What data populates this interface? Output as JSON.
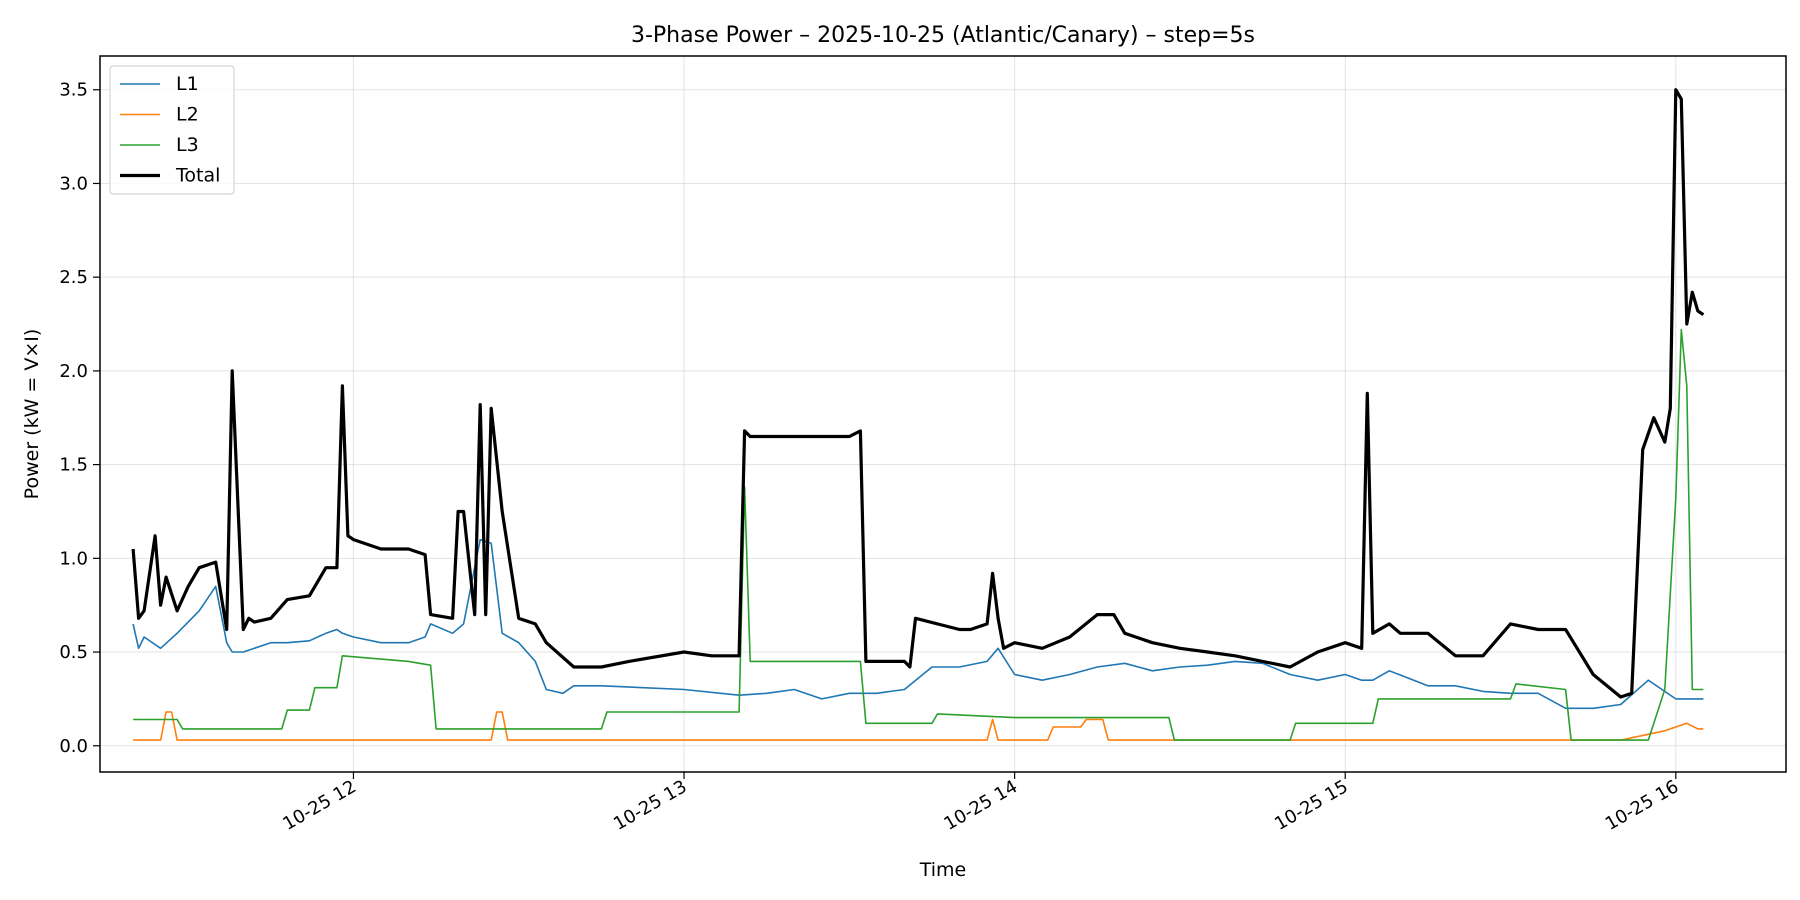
{
  "chart_data": {
    "type": "line",
    "title": "3-Phase Power – 2025-10-25 (Atlantic/Canary) – step=5s",
    "xlabel": "Time",
    "ylabel": "Power (kW = V×I)",
    "xlim": [
      "2025-10-25 11:14",
      "2025-10-25 16:20"
    ],
    "ylim": [
      -0.14,
      3.68
    ],
    "x_ticks": [
      {
        "x": "2025-10-25 12:00",
        "label": "10-25 12"
      },
      {
        "x": "2025-10-25 13:00",
        "label": "10-25 13"
      },
      {
        "x": "2025-10-25 14:00",
        "label": "10-25 14"
      },
      {
        "x": "2025-10-25 15:00",
        "label": "10-25 15"
      },
      {
        "x": "2025-10-25 16:00",
        "label": "10-25 16"
      }
    ],
    "y_ticks": [
      "0.0",
      "0.5",
      "1.0",
      "1.5",
      "2.0",
      "2.5",
      "3.0",
      "3.5"
    ],
    "grid": true,
    "legend_position": "top-left",
    "series": [
      {
        "name": "L1",
        "color": "#1f77b4",
        "x": [
          "11:20",
          "11:21",
          "11:22",
          "11:25",
          "11:28",
          "11:32",
          "11:35",
          "11:37",
          "11:38",
          "11:40",
          "11:45",
          "11:48",
          "11:52",
          "11:55",
          "11:57",
          "11:58",
          "12:00",
          "12:05",
          "12:10",
          "12:13",
          "12:14",
          "12:18",
          "12:20",
          "12:23",
          "12:25",
          "12:27",
          "12:30",
          "12:33",
          "12:35",
          "12:38",
          "12:40",
          "12:45",
          "13:00",
          "13:10",
          "13:15",
          "13:20",
          "13:25",
          "13:30",
          "13:35",
          "13:40",
          "13:45",
          "13:50",
          "13:55",
          "13:57",
          "14:00",
          "14:05",
          "14:10",
          "14:15",
          "14:20",
          "14:25",
          "14:30",
          "14:35",
          "14:40",
          "14:45",
          "14:50",
          "14:55",
          "15:00",
          "15:03",
          "15:05",
          "15:08",
          "15:15",
          "15:20",
          "15:25",
          "15:30",
          "15:35",
          "15:40",
          "15:45",
          "15:50",
          "15:55",
          "16:00",
          "16:03",
          "16:05"
        ],
        "y": [
          0.65,
          0.52,
          0.58,
          0.52,
          0.6,
          0.72,
          0.85,
          0.55,
          0.5,
          0.5,
          0.55,
          0.55,
          0.56,
          0.6,
          0.62,
          0.6,
          0.58,
          0.55,
          0.55,
          0.58,
          0.65,
          0.6,
          0.65,
          1.1,
          1.08,
          0.6,
          0.55,
          0.45,
          0.3,
          0.28,
          0.32,
          0.32,
          0.3,
          0.27,
          0.28,
          0.3,
          0.25,
          0.28,
          0.28,
          0.3,
          0.42,
          0.42,
          0.45,
          0.52,
          0.38,
          0.35,
          0.38,
          0.42,
          0.44,
          0.4,
          0.42,
          0.43,
          0.45,
          0.44,
          0.38,
          0.35,
          0.38,
          0.35,
          0.35,
          0.4,
          0.32,
          0.32,
          0.29,
          0.28,
          0.28,
          0.2,
          0.2,
          0.22,
          0.35,
          0.25,
          0.25,
          0.25
        ]
      },
      {
        "name": "L2",
        "color": "#ff7f0e",
        "x": [
          "11:20",
          "11:25",
          "11:26",
          "11:27",
          "11:28",
          "12:25",
          "12:26",
          "12:27",
          "12:28",
          "13:55",
          "13:56",
          "13:57",
          "14:06",
          "14:07",
          "14:12",
          "14:13",
          "14:15",
          "14:16",
          "14:17",
          "15:50",
          "15:58",
          "16:00",
          "16:02",
          "16:04",
          "16:05"
        ],
        "y": [
          0.03,
          0.03,
          0.18,
          0.18,
          0.03,
          0.03,
          0.18,
          0.18,
          0.03,
          0.03,
          0.14,
          0.03,
          0.03,
          0.1,
          0.1,
          0.14,
          0.14,
          0.14,
          0.03,
          0.03,
          0.08,
          0.1,
          0.12,
          0.09,
          0.09
        ]
      },
      {
        "name": "L3",
        "color": "#2ca02c",
        "x": [
          "11:20",
          "11:28",
          "11:29",
          "11:47",
          "11:48",
          "11:52",
          "11:53",
          "11:57",
          "11:58",
          "12:10",
          "12:14",
          "12:15",
          "12:45",
          "12:46",
          "13:00",
          "13:10",
          "13:11",
          "13:12",
          "13:15",
          "13:20",
          "13:25",
          "13:30",
          "13:32",
          "13:33",
          "13:45",
          "13:46",
          "14:00",
          "14:10",
          "14:15",
          "14:28",
          "14:29",
          "14:50",
          "14:51",
          "15:05",
          "15:06",
          "15:30",
          "15:31",
          "15:40",
          "15:41",
          "15:55",
          "15:58",
          "16:00",
          "16:01",
          "16:02",
          "16:03",
          "16:05"
        ],
        "y": [
          0.14,
          0.14,
          0.09,
          0.09,
          0.19,
          0.19,
          0.31,
          0.31,
          0.48,
          0.45,
          0.43,
          0.09,
          0.09,
          0.18,
          0.18,
          0.18,
          1.38,
          0.45,
          0.45,
          0.45,
          0.45,
          0.45,
          0.45,
          0.12,
          0.12,
          0.17,
          0.15,
          0.15,
          0.15,
          0.15,
          0.03,
          0.03,
          0.12,
          0.12,
          0.25,
          0.25,
          0.33,
          0.3,
          0.03,
          0.03,
          0.3,
          1.32,
          2.22,
          1.92,
          0.3,
          0.3
        ]
      },
      {
        "name": "Total",
        "color": "#000000",
        "x": [
          "11:20",
          "11:21",
          "11:22",
          "11:24",
          "11:25",
          "11:26",
          "11:28",
          "11:30",
          "11:32",
          "11:35",
          "11:37",
          "11:38",
          "11:40",
          "11:41",
          "11:42",
          "11:45",
          "11:48",
          "11:52",
          "11:55",
          "11:57",
          "11:58",
          "11:59",
          "12:00",
          "12:05",
          "12:10",
          "12:13",
          "12:14",
          "12:18",
          "12:19",
          "12:20",
          "12:22",
          "12:23",
          "12:24",
          "12:25",
          "12:27",
          "12:30",
          "12:33",
          "12:35",
          "12:40",
          "12:45",
          "12:50",
          "13:00",
          "13:05",
          "13:10",
          "13:11",
          "13:12",
          "13:20",
          "13:25",
          "13:30",
          "13:32",
          "13:33",
          "13:40",
          "13:41",
          "13:42",
          "13:50",
          "13:52",
          "13:55",
          "13:56",
          "13:57",
          "13:58",
          "14:00",
          "14:05",
          "14:10",
          "14:15",
          "14:18",
          "14:20",
          "14:25",
          "14:30",
          "14:35",
          "14:40",
          "14:45",
          "14:50",
          "14:55",
          "15:00",
          "15:03",
          "15:04",
          "15:05",
          "15:08",
          "15:10",
          "15:15",
          "15:20",
          "15:25",
          "15:30",
          "15:35",
          "15:40",
          "15:45",
          "15:50",
          "15:52",
          "15:54",
          "15:56",
          "15:58",
          "15:59",
          "16:00",
          "16:01",
          "16:02",
          "16:03",
          "16:04",
          "16:05"
        ],
        "y": [
          1.05,
          0.68,
          0.72,
          1.12,
          0.75,
          0.9,
          0.72,
          0.85,
          0.95,
          0.98,
          0.62,
          2.0,
          0.62,
          0.68,
          0.66,
          0.68,
          0.78,
          0.8,
          0.95,
          0.95,
          1.92,
          1.12,
          1.1,
          1.05,
          1.05,
          1.02,
          0.7,
          0.68,
          1.25,
          1.25,
          0.7,
          1.82,
          0.7,
          1.8,
          1.25,
          0.68,
          0.65,
          0.55,
          0.42,
          0.42,
          0.45,
          0.5,
          0.48,
          0.48,
          1.68,
          1.65,
          1.65,
          1.65,
          1.65,
          1.68,
          0.45,
          0.45,
          0.42,
          0.68,
          0.62,
          0.62,
          0.65,
          0.92,
          0.68,
          0.52,
          0.55,
          0.52,
          0.58,
          0.7,
          0.7,
          0.6,
          0.55,
          0.52,
          0.5,
          0.48,
          0.45,
          0.42,
          0.5,
          0.55,
          0.52,
          1.88,
          0.6,
          0.65,
          0.6,
          0.6,
          0.48,
          0.48,
          0.65,
          0.62,
          0.62,
          0.38,
          0.26,
          0.28,
          1.58,
          1.75,
          1.62,
          1.8,
          3.5,
          3.45,
          2.25,
          2.42,
          2.32,
          2.3
        ]
      }
    ]
  }
}
